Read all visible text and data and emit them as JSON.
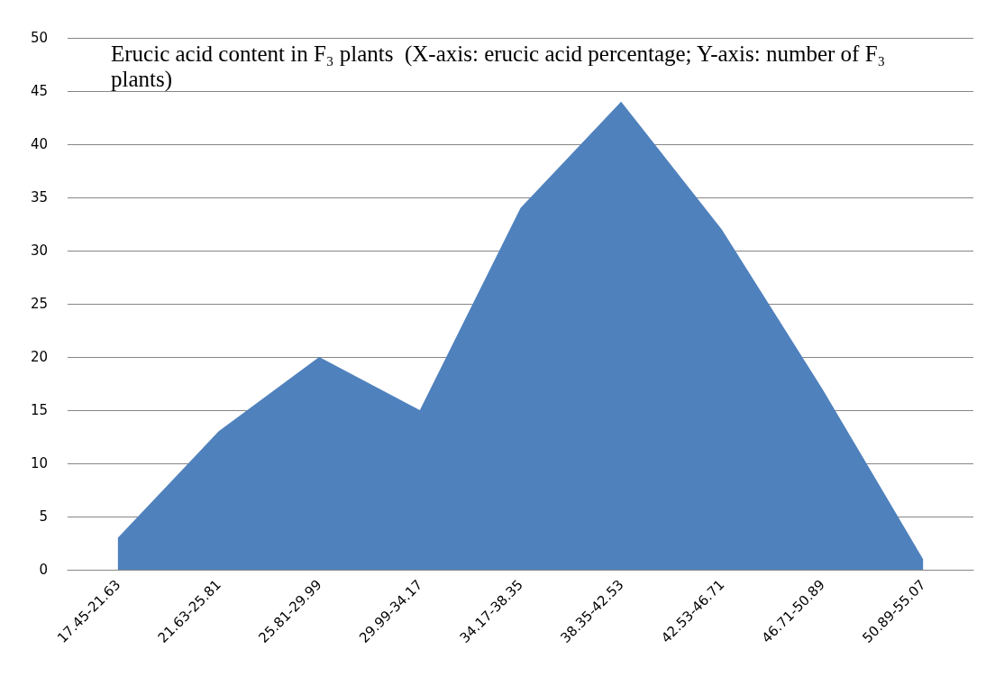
{
  "chart_data": {
    "type": "area",
    "title": "Erucic acid content in F₃ plants  (X-axis: erucic acid percentage; Y-axis: number of F₃ plants)",
    "categories": [
      "17.45-21.63",
      "21.63-25.81",
      "25.81-29.99",
      "29.99-34.17",
      "34.17-38.35",
      "38.35-42.53",
      "42.53-46.71",
      "46.71-50.89",
      "50.89-55.07"
    ],
    "series": [
      {
        "color": "#4f81bd",
        "values": [
          3,
          13,
          20,
          15,
          34,
          44,
          32,
          17,
          1
        ]
      }
    ],
    "ylim": [
      0,
      50
    ],
    "yticks": [
      0,
      5,
      10,
      15,
      20,
      25,
      30,
      35,
      40,
      45,
      50
    ],
    "grid": "y",
    "marker": "none"
  }
}
